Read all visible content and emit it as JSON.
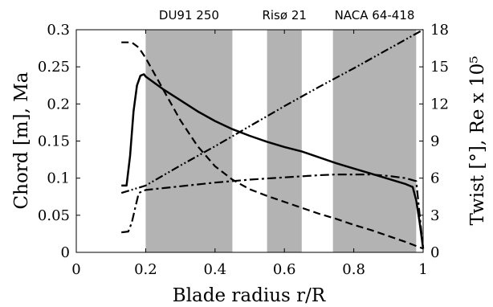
{
  "chart_data": {
    "type": "line",
    "xlabel": "Blade radius r/R",
    "ylabel_left": "Chord [m], Ma",
    "ylabel_right": "Twist [°], Re x 10⁵",
    "xlim": [
      0,
      1
    ],
    "ylim_left": [
      0,
      0.3
    ],
    "ylim_right": [
      0,
      18
    ],
    "x_ticks": [
      "0",
      "0.2",
      "0.4",
      "0.6",
      "0.8",
      "1"
    ],
    "x_tick_values": [
      0,
      0.2,
      0.4,
      0.6,
      0.8,
      1.0
    ],
    "y_ticks_left": [
      "0",
      "0.05",
      "0.1",
      "0.15",
      "0.2",
      "0.25",
      "0.3"
    ],
    "y_tick_values_left": [
      0,
      0.05,
      0.1,
      0.15,
      0.2,
      0.25,
      0.3
    ],
    "y_ticks_right": [
      "0",
      "3",
      "6",
      "9",
      "12",
      "15",
      "18"
    ],
    "y_tick_values_right": [
      0,
      3,
      6,
      9,
      12,
      15,
      18
    ],
    "shaded_regions": [
      {
        "x0": 0.2,
        "x1": 0.45,
        "label": "DU91 250"
      },
      {
        "x0": 0.55,
        "x1": 0.65,
        "label": "Risø 21"
      },
      {
        "x0": 0.74,
        "x1": 0.98,
        "label": "NACA 64-418"
      }
    ],
    "series": [
      {
        "style": "solid",
        "axis": "left",
        "x": [
          0.13,
          0.145,
          0.155,
          0.165,
          0.175,
          0.185,
          0.195,
          0.2,
          0.25,
          0.3,
          0.35,
          0.4,
          0.45,
          0.5,
          0.55,
          0.6,
          0.65,
          0.7,
          0.75,
          0.8,
          0.85,
          0.9,
          0.95,
          0.97,
          0.98,
          0.99,
          1.0
        ],
        "values": [
          0.09,
          0.09,
          0.13,
          0.19,
          0.225,
          0.238,
          0.24,
          0.237,
          0.22,
          0.205,
          0.19,
          0.177,
          0.166,
          0.157,
          0.149,
          0.142,
          0.136,
          0.128,
          0.12,
          0.113,
          0.106,
          0.099,
          0.092,
          0.088,
          0.07,
          0.04,
          0.005
        ]
      },
      {
        "style": "dashed",
        "axis": "left",
        "x": [
          0.13,
          0.16,
          0.18,
          0.2,
          0.25,
          0.3,
          0.35,
          0.4,
          0.45,
          0.5,
          0.55,
          0.6,
          0.65,
          0.7,
          0.75,
          0.8,
          0.85,
          0.9,
          0.95,
          1.0
        ],
        "values": [
          0.283,
          0.283,
          0.276,
          0.262,
          0.22,
          0.178,
          0.143,
          0.116,
          0.098,
          0.085,
          0.076,
          0.068,
          0.06,
          0.052,
          0.045,
          0.037,
          0.03,
          0.022,
          0.014,
          0.005
        ]
      },
      {
        "style": "dash-dot",
        "axis": "left",
        "x": [
          0.13,
          0.15,
          0.16,
          0.17,
          0.18,
          0.2,
          0.3,
          0.4,
          0.5,
          0.6,
          0.7,
          0.75,
          0.8,
          0.85,
          0.9,
          0.95,
          0.98,
          0.99,
          1.0
        ],
        "values": [
          0.027,
          0.028,
          0.04,
          0.06,
          0.08,
          0.084,
          0.089,
          0.094,
          0.098,
          0.101,
          0.104,
          0.105,
          0.105,
          0.105,
          0.103,
          0.1,
          0.096,
          0.05,
          0.005
        ]
      },
      {
        "style": "dash-dot-dot",
        "axis": "left",
        "x": [
          0.13,
          0.2,
          0.3,
          0.4,
          0.5,
          0.6,
          0.7,
          0.8,
          0.9,
          1.0
        ],
        "values": [
          0.08,
          0.09,
          0.117,
          0.143,
          0.17,
          0.197,
          0.223,
          0.248,
          0.274,
          0.3
        ]
      }
    ]
  }
}
